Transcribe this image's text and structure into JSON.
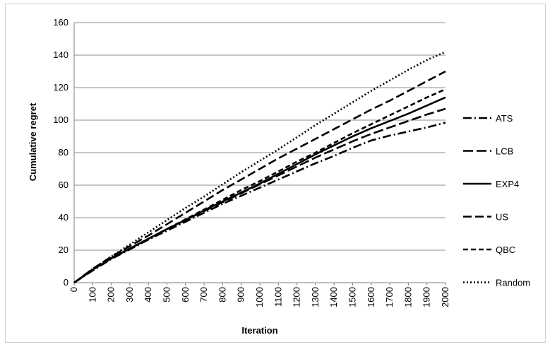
{
  "chart_data": {
    "type": "line",
    "title": "",
    "xlabel": "Iteration",
    "ylabel": "Cumulative regret",
    "xlim": [
      0,
      2000
    ],
    "ylim": [
      0,
      160
    ],
    "x_ticks": [
      "0",
      "100",
      "200",
      "300",
      "400",
      "500",
      "600",
      "700",
      "800",
      "900",
      "1000",
      "1100",
      "1200",
      "1300",
      "1400",
      "1500",
      "1600",
      "1700",
      "1800",
      "1900",
      "2000"
    ],
    "y_ticks": [
      "0",
      "20",
      "40",
      "60",
      "80",
      "100",
      "120",
      "140",
      "160"
    ],
    "grid": "horizontal",
    "legend_position": "right",
    "x": [
      0,
      100,
      200,
      300,
      400,
      500,
      600,
      700,
      800,
      900,
      1000,
      1100,
      1200,
      1300,
      1400,
      1500,
      1600,
      1700,
      1800,
      1900,
      2000
    ],
    "series": [
      {
        "name": "ATS",
        "dash": "12 4 2 4",
        "values": [
          0,
          7.5,
          14.5,
          20.5,
          26.5,
          32,
          37.5,
          43,
          48.5,
          53.5,
          58.5,
          63.5,
          68.5,
          73.5,
          78,
          83,
          87.5,
          90.5,
          93,
          95.5,
          98.5
        ]
      },
      {
        "name": "LCB",
        "dash": "14 5",
        "values": [
          0,
          8,
          15,
          21,
          27,
          33,
          38.5,
          44,
          49.5,
          55,
          60.5,
          66,
          71.5,
          77,
          82,
          87,
          91.5,
          95.5,
          99.5,
          103.5,
          107
        ]
      },
      {
        "name": "EXP4",
        "dash": "",
        "values": [
          0,
          8,
          15,
          21,
          27,
          33,
          38.5,
          44.5,
          50,
          55.5,
          61,
          67,
          73,
          79,
          84.5,
          90,
          95,
          99.5,
          104,
          109,
          114
        ]
      },
      {
        "name": "US",
        "dash": "12 5",
        "values": [
          0,
          8.5,
          16,
          22.5,
          29,
          36,
          43,
          50,
          57,
          63.5,
          70,
          76.5,
          82.5,
          88.5,
          94.5,
          100.5,
          106.5,
          112,
          118,
          124,
          130
        ]
      },
      {
        "name": "QBC",
        "dash": "7 4",
        "values": [
          0,
          8,
          15,
          21,
          27,
          33,
          39,
          45,
          51,
          57,
          62.5,
          68.5,
          74.5,
          80,
          86,
          92,
          97.5,
          103,
          108.5,
          114,
          119
        ]
      },
      {
        "name": "Random",
        "dash": "2 3",
        "values": [
          0,
          8.5,
          16,
          23.5,
          31,
          38.5,
          46,
          53,
          60.5,
          68,
          75,
          82,
          89.5,
          97,
          104,
          111,
          118,
          124.5,
          131,
          137,
          142
        ]
      }
    ]
  }
}
